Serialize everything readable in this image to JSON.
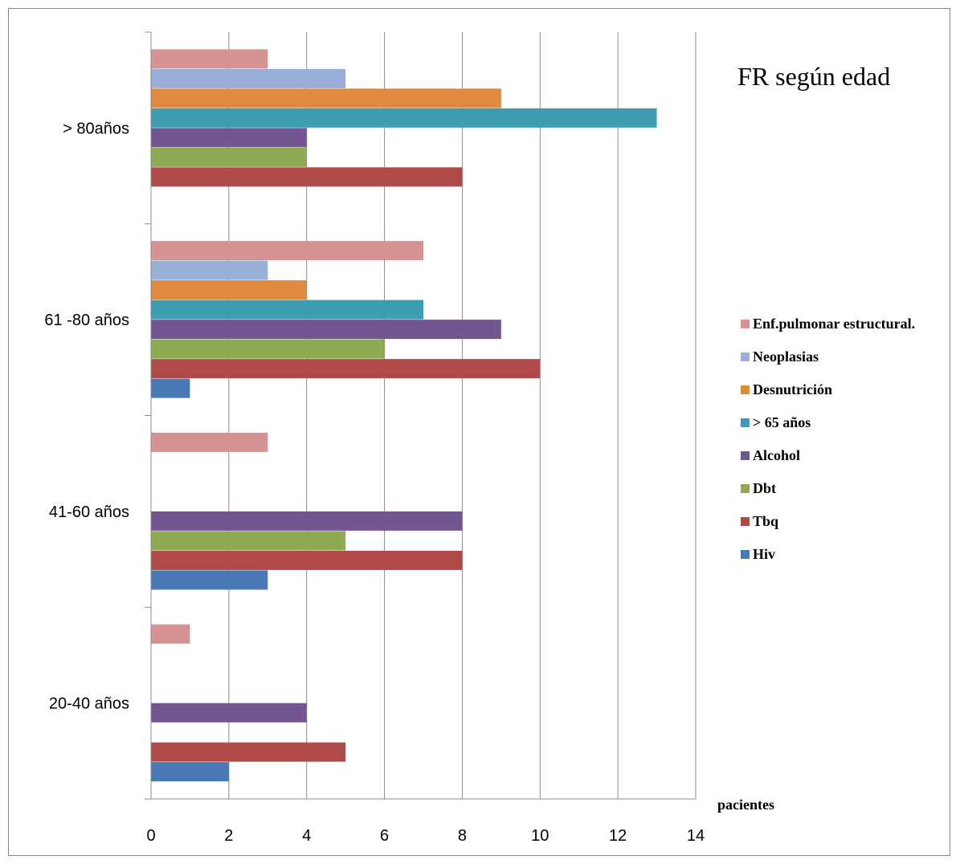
{
  "chart_data": {
    "type": "bar",
    "orientation": "horizontal",
    "title": "FR según edad",
    "xlabel": "pacientes",
    "ylabel": "",
    "xlim": [
      0,
      14
    ],
    "xticks": [
      "0",
      "2",
      "4",
      "6",
      "8",
      "10",
      "12",
      "14"
    ],
    "grid": true,
    "legend_position": "right",
    "categories": [
      "20-40 años",
      "41-60 años",
      "61 -80 años",
      "> 80años"
    ],
    "series": [
      {
        "name": "Hiv",
        "color": "#4a7ab5",
        "values": [
          2,
          3,
          1,
          0
        ]
      },
      {
        "name": "Tbq",
        "color": "#b04a48",
        "values": [
          5,
          8,
          10,
          8
        ]
      },
      {
        "name": "Dbt",
        "color": "#8eaa52",
        "values": [
          0,
          5,
          6,
          4
        ]
      },
      {
        "name": "Alcohol",
        "color": "#735592",
        "values": [
          4,
          8,
          9,
          4
        ]
      },
      {
        "name": "> 65 años",
        "color": "#3d9db1",
        "values": [
          0,
          0,
          7,
          13
        ]
      },
      {
        "name": "Desnutrición",
        "color": "#e08a3f",
        "values": [
          0,
          0,
          4,
          9
        ]
      },
      {
        "name": "Neoplasias",
        "color": "#98b0d8",
        "values": [
          0,
          0,
          3,
          5
        ]
      },
      {
        "name": "Enf.pulmonar estructural.",
        "color": "#d59493",
        "values": [
          1,
          3,
          7,
          3
        ]
      }
    ]
  }
}
